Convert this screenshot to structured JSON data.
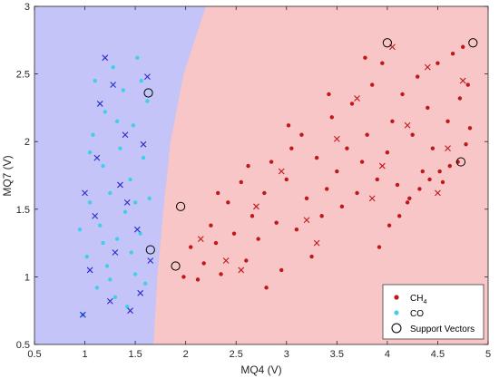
{
  "chart_data": {
    "type": "scatter",
    "title": "",
    "xlabel": "MQ4 (V)",
    "ylabel": "MQ7 (V)",
    "xlim": [
      0.5,
      5
    ],
    "ylim": [
      0.5,
      3
    ],
    "xticks": [
      "0.5",
      "1",
      "1.5",
      "2",
      "2.5",
      "3",
      "3.5",
      "4",
      "4.5",
      "5"
    ],
    "yticks": [
      "0.5",
      "1",
      "1.5",
      "2",
      "2.5",
      "3"
    ],
    "grid": false,
    "legend_position": "bottom-right",
    "regions": [
      {
        "class": "CO",
        "color": "#c4c4f8"
      },
      {
        "class": "CH4",
        "color": "#f8c6c6"
      }
    ],
    "decision_boundary": [
      [
        1.68,
        0.5
      ],
      [
        1.72,
        1.0
      ],
      [
        1.78,
        1.5
      ],
      [
        1.85,
        2.0
      ],
      [
        1.98,
        2.5
      ],
      [
        2.2,
        3.0
      ]
    ],
    "series": [
      {
        "name": "CH",
        "name_subscript": "4",
        "color": "#c01818",
        "points": [
          [
            1.98,
            1.0
          ],
          [
            2.05,
            1.22
          ],
          [
            2.12,
            0.98
          ],
          [
            2.18,
            1.1
          ],
          [
            2.25,
            1.38
          ],
          [
            2.3,
            1.25
          ],
          [
            2.35,
            1.02
          ],
          [
            2.42,
            1.55
          ],
          [
            2.48,
            1.32
          ],
          [
            2.55,
            1.7
          ],
          [
            2.6,
            1.12
          ],
          [
            2.66,
            1.45
          ],
          [
            2.72,
            1.28
          ],
          [
            2.78,
            1.62
          ],
          [
            2.8,
            0.92
          ],
          [
            2.85,
            1.85
          ],
          [
            2.9,
            1.4
          ],
          [
            2.95,
            1.05
          ],
          [
            3.0,
            1.72
          ],
          [
            3.05,
            1.95
          ],
          [
            3.1,
            1.35
          ],
          [
            3.15,
            2.05
          ],
          [
            3.2,
            1.58
          ],
          [
            3.25,
            1.15
          ],
          [
            3.3,
            1.88
          ],
          [
            3.35,
            1.45
          ],
          [
            3.4,
            1.65
          ],
          [
            3.45,
            2.18
          ],
          [
            3.5,
            1.78
          ],
          [
            3.55,
            1.52
          ],
          [
            3.6,
            1.95
          ],
          [
            3.65,
            2.28
          ],
          [
            3.7,
            1.62
          ],
          [
            3.75,
            1.85
          ],
          [
            3.8,
            2.05
          ],
          [
            3.85,
            2.42
          ],
          [
            3.9,
            1.72
          ],
          [
            3.95,
            2.58
          ],
          [
            4.0,
            1.92
          ],
          [
            4.05,
            2.15
          ],
          [
            4.1,
            1.68
          ],
          [
            4.15,
            2.35
          ],
          [
            4.2,
            1.55
          ],
          [
            4.25,
            2.05
          ],
          [
            4.3,
            2.48
          ],
          [
            4.35,
            1.78
          ],
          [
            4.4,
            2.25
          ],
          [
            4.45,
            1.95
          ],
          [
            4.5,
            2.58
          ],
          [
            4.55,
            1.7
          ],
          [
            4.6,
            2.15
          ],
          [
            4.65,
            2.65
          ],
          [
            4.7,
            1.85
          ],
          [
            4.72,
            2.32
          ],
          [
            4.75,
            2.7
          ],
          [
            4.78,
            1.98
          ],
          [
            4.8,
            2.42
          ],
          [
            4.82,
            2.1
          ],
          [
            3.92,
            1.22
          ],
          [
            4.02,
            1.38
          ],
          [
            4.12,
            1.45
          ],
          [
            4.22,
            1.58
          ],
          [
            4.32,
            1.65
          ],
          [
            4.42,
            1.72
          ],
          [
            4.52,
            1.78
          ],
          [
            4.62,
            1.82
          ],
          [
            2.32,
            1.62
          ],
          [
            2.62,
            1.82
          ],
          [
            3.02,
            2.12
          ],
          [
            3.42,
            2.35
          ],
          [
            3.78,
            2.62
          ]
        ]
      },
      {
        "name": "CO",
        "color": "#3fd0e8",
        "points": [
          [
            0.98,
            0.72
          ],
          [
            1.02,
            1.15
          ],
          [
            1.05,
            1.55
          ],
          [
            1.08,
            2.05
          ],
          [
            1.1,
            2.45
          ],
          [
            1.12,
            0.92
          ],
          [
            1.15,
            1.38
          ],
          [
            1.18,
            1.82
          ],
          [
            1.2,
            2.22
          ],
          [
            1.22,
            1.08
          ],
          [
            1.25,
            1.62
          ],
          [
            1.28,
            2.55
          ],
          [
            1.3,
            0.85
          ],
          [
            1.32,
            1.28
          ],
          [
            1.35,
            1.95
          ],
          [
            1.38,
            2.38
          ],
          [
            1.4,
            1.48
          ],
          [
            1.42,
            0.78
          ],
          [
            1.45,
            1.72
          ],
          [
            1.48,
            2.12
          ],
          [
            1.5,
            1.02
          ],
          [
            1.52,
            2.62
          ],
          [
            1.55,
            1.32
          ],
          [
            1.58,
            1.88
          ],
          [
            1.6,
            0.95
          ],
          [
            1.62,
            2.3
          ],
          [
            1.64,
            1.58
          ],
          [
            1.05,
            1.92
          ],
          [
            1.18,
            1.25
          ],
          [
            1.32,
            2.15
          ],
          [
            1.46,
            1.18
          ],
          [
            1.56,
            2.45
          ],
          [
            0.95,
            1.35
          ],
          [
            1.25,
            0.98
          ],
          [
            1.5,
            1.55
          ]
        ]
      }
    ],
    "co_crosses": [
      [
        0.98,
        0.72
      ],
      [
        1.05,
        1.05
      ],
      [
        1.1,
        1.45
      ],
      [
        1.12,
        1.88
      ],
      [
        1.2,
        2.62
      ],
      [
        1.25,
        0.82
      ],
      [
        1.3,
        1.18
      ],
      [
        1.35,
        1.68
      ],
      [
        1.4,
        2.05
      ],
      [
        1.45,
        0.75
      ],
      [
        1.52,
        1.35
      ],
      [
        1.58,
        1.98
      ],
      [
        1.62,
        2.48
      ],
      [
        1.65,
        1.12
      ],
      [
        1.15,
        2.28
      ],
      [
        1.42,
        1.55
      ],
      [
        1.0,
        1.62
      ],
      [
        1.28,
        2.42
      ],
      [
        1.55,
        0.88
      ]
    ],
    "ch4_crosses": [
      [
        2.15,
        1.28
      ],
      [
        2.4,
        1.12
      ],
      [
        2.7,
        1.52
      ],
      [
        2.95,
        1.78
      ],
      [
        3.2,
        1.42
      ],
      [
        3.5,
        2.02
      ],
      [
        3.7,
        2.32
      ],
      [
        3.95,
        1.82
      ],
      [
        4.2,
        2.12
      ],
      [
        4.4,
        2.55
      ],
      [
        4.6,
        1.95
      ],
      [
        4.75,
        2.45
      ],
      [
        3.3,
        1.25
      ],
      [
        3.85,
        1.58
      ],
      [
        4.05,
        2.7
      ],
      [
        4.5,
        1.62
      ],
      [
        2.55,
        1.05
      ]
    ],
    "support_vectors": [
      [
        1.63,
        2.36
      ],
      [
        1.65,
        1.2
      ],
      [
        1.95,
        1.52
      ],
      [
        1.9,
        1.08
      ],
      [
        4.0,
        2.73
      ],
      [
        4.85,
        2.73
      ],
      [
        4.73,
        1.85
      ]
    ],
    "legend": {
      "ch4_label": "CH",
      "ch4_subscript": "4",
      "co_label": "CO",
      "sv_label": "Support Vectors"
    }
  }
}
